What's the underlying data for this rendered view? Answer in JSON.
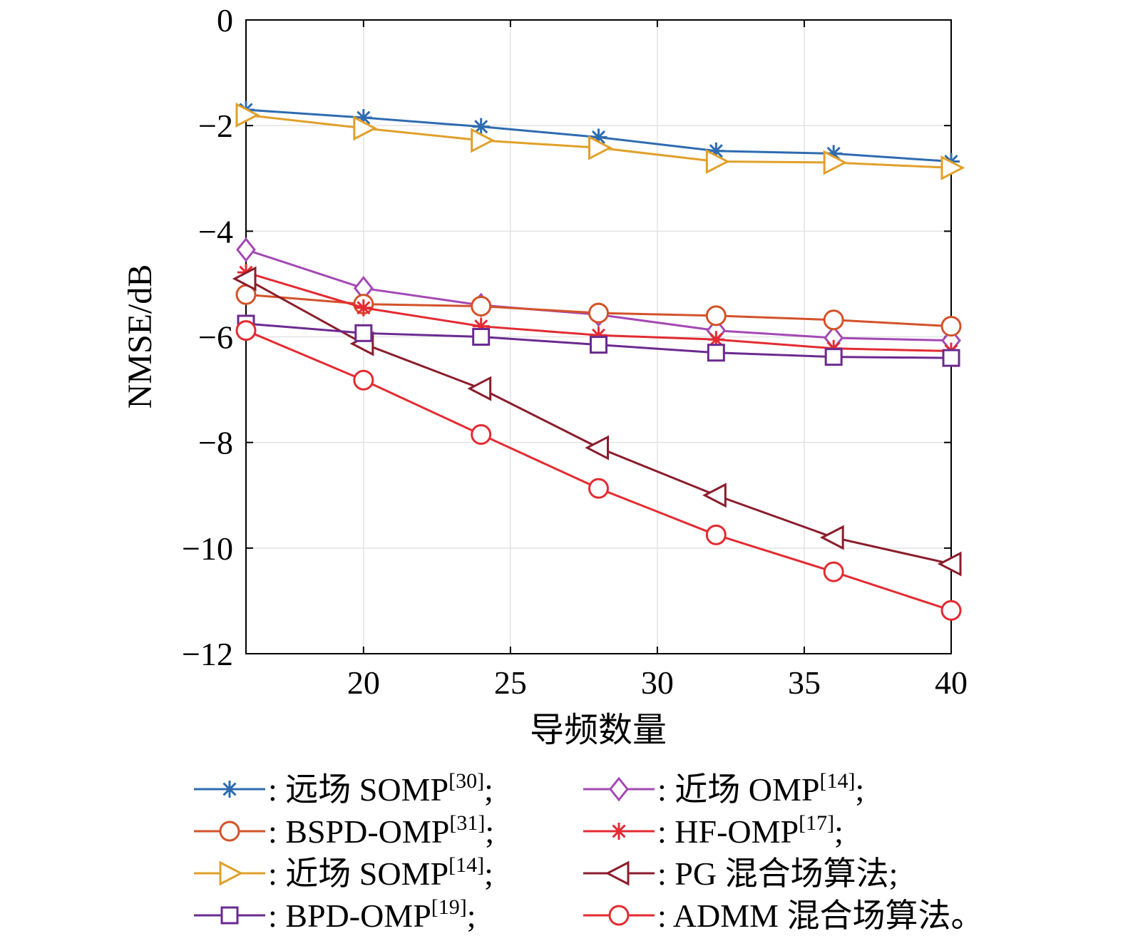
{
  "chart_data": {
    "type": "line",
    "xlabel": "导频数量",
    "ylabel": "NMSE/dB",
    "xlim": [
      16,
      40
    ],
    "ylim": [
      -12,
      0
    ],
    "xticks": [
      "20",
      "25",
      "30",
      "35",
      "40"
    ],
    "yticks": [
      "0",
      "−2",
      "−4",
      "−6",
      "−8",
      "−10",
      "−12"
    ],
    "grid": true,
    "legend_position": "bottom",
    "x": [
      16,
      20,
      24,
      28,
      32,
      36,
      40
    ],
    "series": [
      {
        "name": "远场 SOMP",
        "ref": "[30]",
        "end": ";",
        "color": "#2e6bb0",
        "marker": "asterisk",
        "values": [
          -1.7,
          -1.85,
          -2.02,
          -2.22,
          -2.48,
          -2.53,
          -2.68
        ]
      },
      {
        "name": "近场 OMP",
        "ref": "[14]",
        "end": ";",
        "color": "#a348b4",
        "marker": "diamond",
        "values": [
          -4.35,
          -5.08,
          -5.4,
          -5.58,
          -5.88,
          -6.02,
          -6.07
        ]
      },
      {
        "name": "BSPD-OMP",
        "ref": "[31]",
        "end": ";",
        "color": "#d3522a",
        "marker": "circle",
        "values": [
          -5.2,
          -5.38,
          -5.42,
          -5.55,
          -5.6,
          -5.68,
          -5.8
        ]
      },
      {
        "name": "HF-OMP",
        "ref": "[17]",
        "end": ";",
        "color": "#e32b31",
        "marker": "asterisk",
        "values": [
          -4.78,
          -5.45,
          -5.8,
          -5.97,
          -6.05,
          -6.22,
          -6.27
        ]
      },
      {
        "name": "近场 SOMP",
        "ref": "[14]",
        "end": ";",
        "color": "#e0a02a",
        "marker": "triangle-right",
        "values": [
          -1.8,
          -2.05,
          -2.28,
          -2.42,
          -2.68,
          -2.7,
          -2.8
        ]
      },
      {
        "name": "PG 混合场算法",
        "ref": "",
        "end": ";",
        "color": "#8b1d2c",
        "marker": "triangle-left",
        "values": [
          -4.9,
          -6.13,
          -6.98,
          -8.1,
          -9.0,
          -9.8,
          -10.3
        ]
      },
      {
        "name": "BPD-OMP",
        "ref": "[19]",
        "end": ";",
        "color": "#6b2a90",
        "marker": "square",
        "values": [
          -5.75,
          -5.93,
          -6.0,
          -6.15,
          -6.3,
          -6.38,
          -6.4
        ]
      },
      {
        "name": "ADMM 混合场算法",
        "ref": "",
        "end": "。",
        "color": "#e32b31",
        "marker": "circle",
        "values": [
          -5.88,
          -6.82,
          -7.85,
          -8.87,
          -9.75,
          -10.45,
          -11.18
        ]
      }
    ]
  }
}
